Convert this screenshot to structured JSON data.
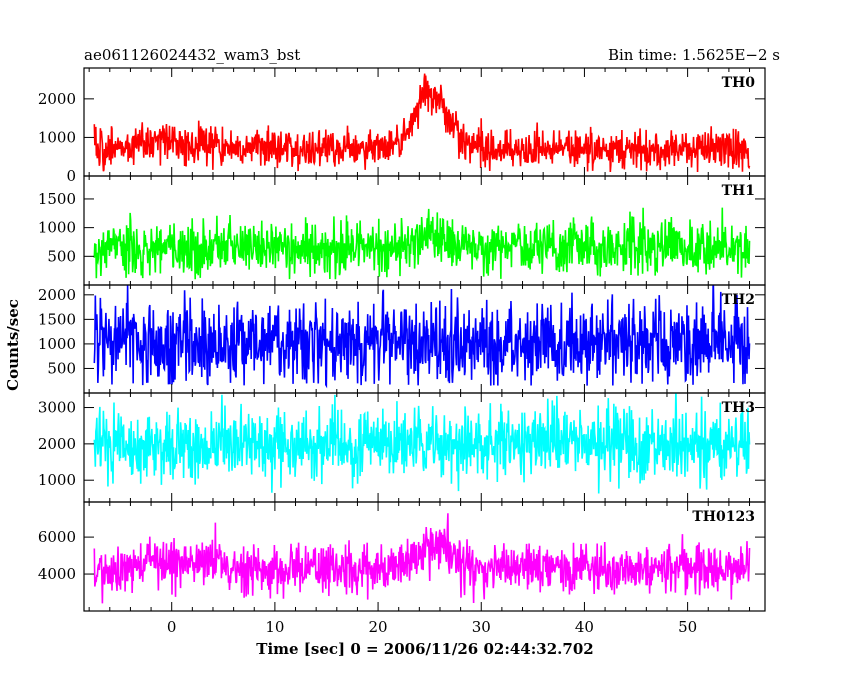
{
  "chart_data": {
    "type": "line",
    "title_left": "ae061126024432_wam3_bst",
    "title_right": "Bin time: 1.5625E−2 s",
    "xlabel": "Time [sec] 0 = 2006/11/26 02:44:32.702",
    "ylabel": "Counts/sec",
    "xlim": [
      -8.5,
      57.5
    ],
    "x_ticks": [
      0,
      10,
      20,
      30,
      40,
      50
    ],
    "x_range_data": [
      -7.5,
      56
    ],
    "bin_time_s": 0.015625,
    "grid": false,
    "panels": [
      {
        "name": "TH0",
        "color": "#ff0000",
        "ylim": [
          0,
          2800
        ],
        "yticks": [
          0,
          1000,
          2000
        ],
        "baseline": 700,
        "noise": 250,
        "floor": 100,
        "features": [
          {
            "x": 0.5,
            "width": 3.0,
            "amplitude": 250
          },
          {
            "x": 25.5,
            "width": 1.6,
            "amplitude": 1200
          },
          {
            "x": 24.2,
            "width": 1.0,
            "amplitude": 500
          }
        ]
      },
      {
        "name": "TH1",
        "color": "#00ff00",
        "ylim": [
          0,
          1900
        ],
        "yticks": [
          500,
          1000,
          1500
        ],
        "baseline": 650,
        "noise": 230,
        "floor": 100,
        "features": [
          {
            "x": 25.5,
            "width": 1.5,
            "amplitude": 200
          }
        ]
      },
      {
        "name": "TH2",
        "color": "#0000ff",
        "ylim": [
          0,
          2200
        ],
        "yticks": [
          500,
          1000,
          1500,
          2000
        ],
        "baseline": 1000,
        "noise": 420,
        "floor": 150,
        "features": []
      },
      {
        "name": "TH3",
        "color": "#00ffff",
        "ylim": [
          400,
          3400
        ],
        "yticks": [
          1000,
          2000,
          3000
        ],
        "baseline": 2000,
        "noise": 480,
        "floor": 500,
        "features": []
      },
      {
        "name": "TH0123",
        "color": "#ff00ff",
        "ylim": [
          2000,
          7900
        ],
        "yticks": [
          4000,
          6000
        ],
        "baseline": 4300,
        "noise": 650,
        "floor": 2050,
        "features": [
          {
            "x": 0.5,
            "width": 3.0,
            "amplitude": 400
          },
          {
            "x": 25.5,
            "width": 1.6,
            "amplitude": 1300
          }
        ]
      }
    ]
  }
}
